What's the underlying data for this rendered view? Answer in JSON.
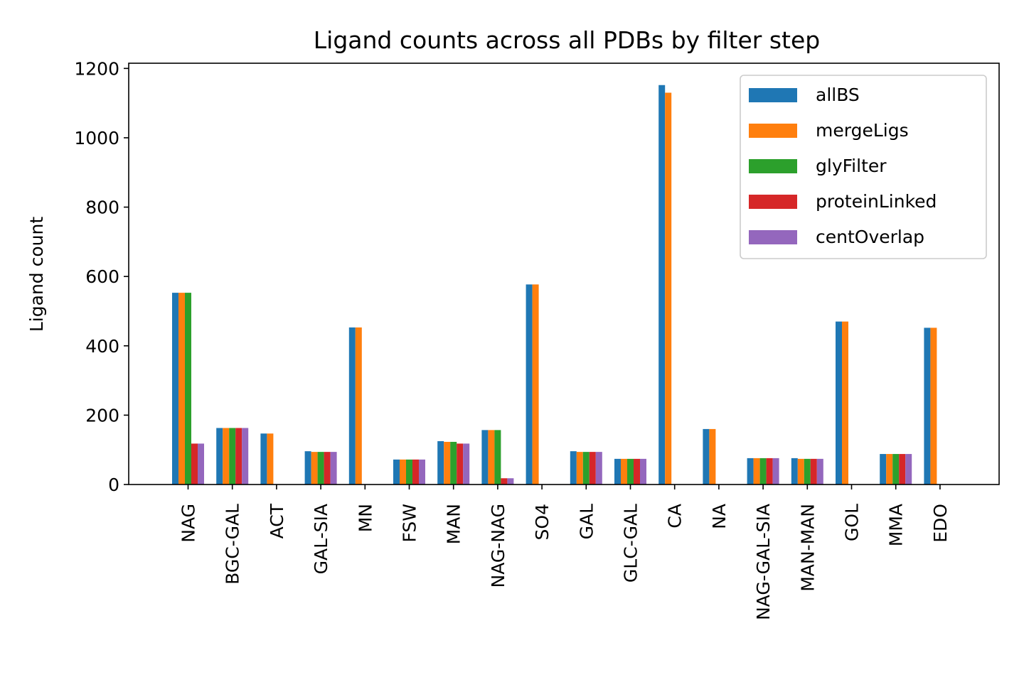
{
  "chart_data": {
    "type": "bar",
    "title": "Ligand counts across all PDBs by filter step",
    "xlabel": "",
    "ylabel": "Ligand count",
    "ylim": [
      0,
      1215
    ],
    "yticks": [
      0,
      200,
      400,
      600,
      800,
      1000,
      1200
    ],
    "ytick_labels": [
      "0",
      "200",
      "400",
      "600",
      "800",
      "1000",
      "1200"
    ],
    "grid": false,
    "legend_position": "upper right",
    "categories": [
      "NAG",
      "BGC-GAL",
      "ACT",
      "GAL-SIA",
      "MN",
      "FSW",
      "MAN",
      "NAG-NAG",
      "SO4",
      "GAL",
      "GLC-GAL",
      "CA",
      "NA",
      "NAG-GAL-SIA",
      "MAN-MAN",
      "GOL",
      "MMA",
      "EDO"
    ],
    "series": [
      {
        "name": "allBS",
        "color": "#1f77b4",
        "values": [
          553,
          163,
          147,
          96,
          453,
          72,
          125,
          157,
          577,
          96,
          74,
          1152,
          160,
          76,
          76,
          470,
          88,
          452
        ]
      },
      {
        "name": "mergeLigs",
        "color": "#ff7f0e",
        "values": [
          553,
          163,
          147,
          94,
          453,
          72,
          123,
          157,
          577,
          94,
          74,
          1130,
          160,
          76,
          74,
          470,
          88,
          452
        ]
      },
      {
        "name": "glyFilter",
        "color": "#2ca02c",
        "values": [
          553,
          163,
          0,
          94,
          0,
          72,
          123,
          157,
          0,
          94,
          74,
          0,
          0,
          76,
          74,
          0,
          88,
          0
        ]
      },
      {
        "name": "proteinLinked",
        "color": "#d62728",
        "values": [
          118,
          163,
          0,
          94,
          0,
          72,
          118,
          18,
          0,
          94,
          74,
          0,
          0,
          76,
          74,
          0,
          88,
          0
        ]
      },
      {
        "name": "centOverlap",
        "color": "#9467bd",
        "values": [
          118,
          163,
          0,
          94,
          0,
          72,
          118,
          18,
          0,
          94,
          74,
          0,
          0,
          76,
          74,
          0,
          88,
          0
        ]
      }
    ]
  }
}
